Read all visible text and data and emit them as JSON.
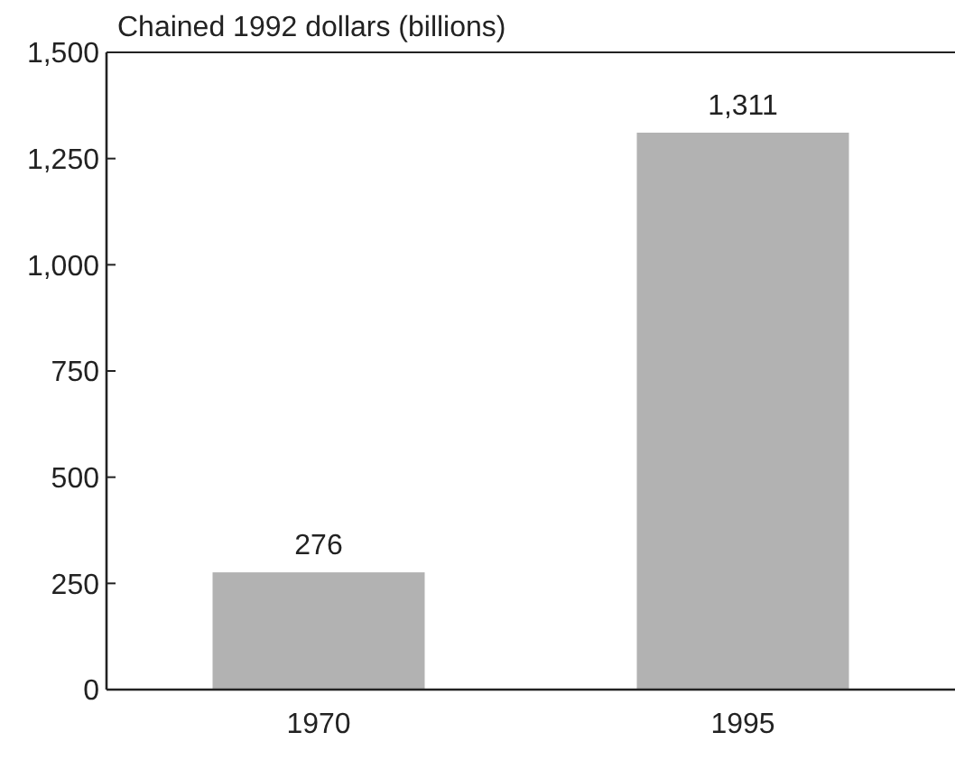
{
  "chart_data": {
    "type": "bar",
    "ylabel": "Chained 1992 dollars (billions)",
    "categories": [
      "1970",
      "1995"
    ],
    "values": [
      276,
      1311
    ],
    "value_labels": [
      "276",
      "1,311"
    ],
    "color": "#b2b2b2",
    "ylim": [
      0,
      1500
    ],
    "yticks": [
      0,
      250,
      500,
      750,
      {
        "value": 1000,
        "label": "1,000"
      },
      {
        "value": 1250,
        "label": "1,250"
      },
      {
        "value": 1500,
        "label": "1,500"
      }
    ],
    "grid": false
  }
}
